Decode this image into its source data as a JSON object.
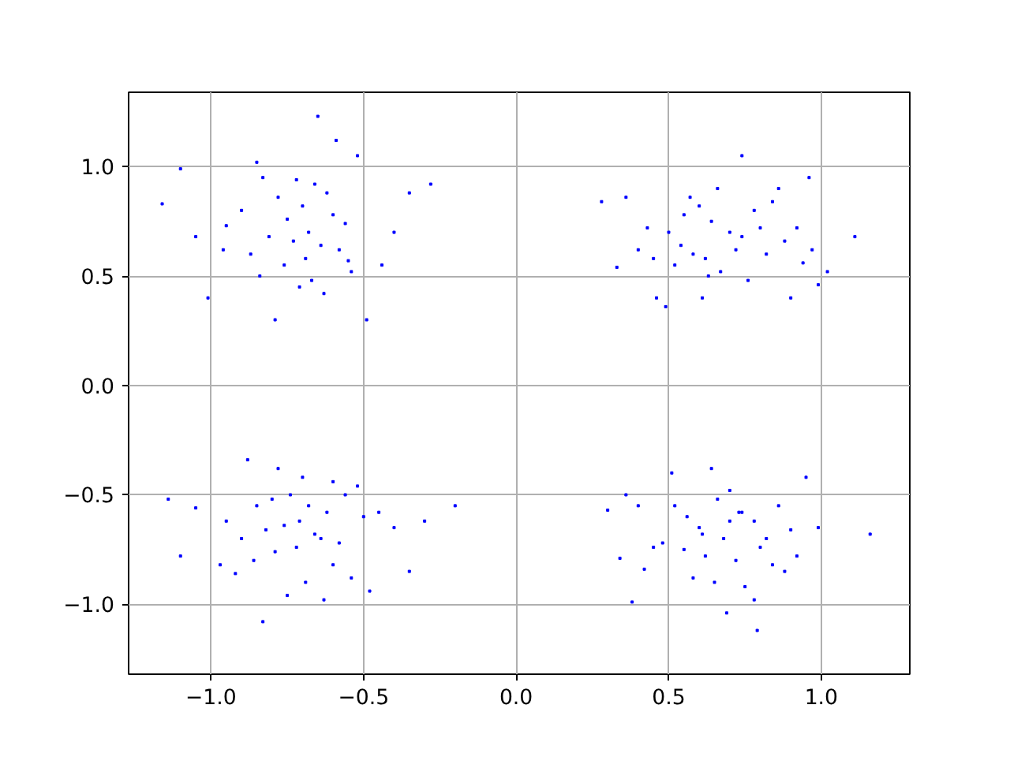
{
  "chart_data": {
    "type": "scatter",
    "marker": "square",
    "grid": true,
    "xlim": [
      -1.27,
      1.29
    ],
    "ylim": [
      -1.32,
      1.34
    ],
    "xticks": [
      {
        "value": -1.0,
        "label": "−1.0"
      },
      {
        "value": -0.5,
        "label": "−0.5"
      },
      {
        "value": 0.0,
        "label": "0.0"
      },
      {
        "value": 0.5,
        "label": "0.5"
      },
      {
        "value": 1.0,
        "label": "1.0"
      }
    ],
    "yticks": [
      {
        "value": -1.0,
        "label": "−1.0"
      },
      {
        "value": -0.5,
        "label": "−0.5"
      },
      {
        "value": 0.0,
        "label": "0.0"
      },
      {
        "value": 0.5,
        "label": "0.5"
      },
      {
        "value": 1.0,
        "label": "1.0"
      }
    ],
    "series": [
      {
        "color": "#0000ff",
        "x": [
          -0.65,
          -1.1,
          -1.16,
          -0.28,
          -0.49,
          -0.79,
          -1.01,
          -0.59,
          -0.52,
          -0.85,
          -0.83,
          -0.72,
          -0.66,
          -0.62,
          -0.78,
          -0.9,
          -0.95,
          -0.7,
          -0.75,
          -0.6,
          -0.56,
          -0.68,
          -0.81,
          -0.73,
          -0.64,
          -0.58,
          -0.87,
          -0.69,
          -0.76,
          -0.54,
          -0.44,
          -0.4,
          -0.35,
          -0.96,
          -1.05,
          -0.67,
          -0.71,
          -0.63,
          -0.84,
          -0.55
        ],
        "values": [
          1.23,
          0.99,
          0.83,
          0.92,
          0.3,
          0.3,
          0.4,
          1.12,
          1.05,
          1.02,
          0.95,
          0.94,
          0.92,
          0.88,
          0.86,
          0.8,
          0.73,
          0.82,
          0.76,
          0.78,
          0.74,
          0.7,
          0.68,
          0.66,
          0.64,
          0.62,
          0.6,
          0.58,
          0.55,
          0.52,
          0.55,
          0.7,
          0.88,
          0.62,
          0.68,
          0.48,
          0.45,
          0.42,
          0.5,
          0.57
        ]
      },
      {
        "color": "#0000ff",
        "x": [
          0.28,
          0.36,
          0.57,
          0.74,
          0.96,
          0.33,
          0.46,
          0.5,
          0.55,
          0.6,
          0.64,
          0.7,
          0.78,
          0.84,
          0.86,
          0.92,
          0.97,
          0.4,
          0.45,
          0.52,
          0.58,
          0.63,
          0.67,
          0.72,
          0.76,
          0.82,
          0.88,
          0.94,
          1.11,
          1.02,
          0.66,
          0.74,
          0.54,
          0.8,
          0.62,
          0.43,
          0.99,
          0.49,
          0.61,
          0.9
        ],
        "values": [
          0.84,
          0.86,
          0.86,
          1.05,
          0.95,
          0.54,
          0.4,
          0.7,
          0.78,
          0.82,
          0.75,
          0.7,
          0.8,
          0.84,
          0.9,
          0.72,
          0.62,
          0.62,
          0.58,
          0.55,
          0.6,
          0.5,
          0.52,
          0.62,
          0.48,
          0.6,
          0.66,
          0.56,
          0.68,
          0.52,
          0.9,
          0.68,
          0.64,
          0.72,
          0.58,
          0.72,
          0.46,
          0.36,
          0.4,
          0.4
        ]
      },
      {
        "color": "#0000ff",
        "x": [
          -1.14,
          -0.88,
          -0.78,
          -0.7,
          -0.6,
          -0.52,
          -1.1,
          -0.95,
          -0.85,
          -0.8,
          -0.74,
          -0.68,
          -0.62,
          -0.56,
          -0.9,
          -0.82,
          -0.76,
          -0.71,
          -0.66,
          -0.58,
          -0.5,
          -0.45,
          -0.4,
          -0.3,
          -0.2,
          -0.92,
          -0.86,
          -0.79,
          -0.72,
          -0.64,
          -0.6,
          -0.54,
          -0.69,
          -0.75,
          -0.63,
          -0.48,
          -1.05,
          -0.97,
          -0.35,
          -0.83
        ],
        "values": [
          -0.52,
          -0.34,
          -0.38,
          -0.42,
          -0.44,
          -0.46,
          -0.78,
          -0.62,
          -0.55,
          -0.52,
          -0.5,
          -0.55,
          -0.58,
          -0.5,
          -0.7,
          -0.66,
          -0.64,
          -0.62,
          -0.68,
          -0.72,
          -0.6,
          -0.58,
          -0.65,
          -0.62,
          -0.55,
          -0.86,
          -0.8,
          -0.76,
          -0.74,
          -0.7,
          -0.82,
          -0.88,
          -0.9,
          -0.96,
          -0.98,
          -0.94,
          -0.56,
          -0.82,
          -0.85,
          -1.08
        ]
      },
      {
        "color": "#0000ff",
        "x": [
          0.3,
          0.4,
          0.51,
          0.64,
          0.95,
          1.16,
          0.34,
          0.38,
          0.45,
          0.52,
          0.56,
          0.6,
          0.66,
          0.7,
          0.74,
          0.78,
          0.82,
          0.86,
          0.9,
          0.48,
          0.55,
          0.62,
          0.68,
          0.72,
          0.8,
          0.84,
          0.88,
          0.58,
          0.65,
          0.75,
          0.69,
          0.78,
          0.42,
          0.61,
          0.7,
          0.79,
          0.92,
          0.99,
          0.36,
          0.73
        ],
        "values": [
          -0.57,
          -0.55,
          -0.4,
          -0.38,
          -0.42,
          -0.68,
          -0.79,
          -0.99,
          -0.74,
          -0.55,
          -0.6,
          -0.65,
          -0.52,
          -0.48,
          -0.58,
          -0.62,
          -0.7,
          -0.55,
          -0.66,
          -0.72,
          -0.75,
          -0.78,
          -0.7,
          -0.8,
          -0.74,
          -0.82,
          -0.85,
          -0.88,
          -0.9,
          -0.92,
          -1.04,
          -0.98,
          -0.84,
          -0.68,
          -0.62,
          -1.12,
          -0.78,
          -0.65,
          -0.5,
          -0.58
        ]
      }
    ]
  }
}
